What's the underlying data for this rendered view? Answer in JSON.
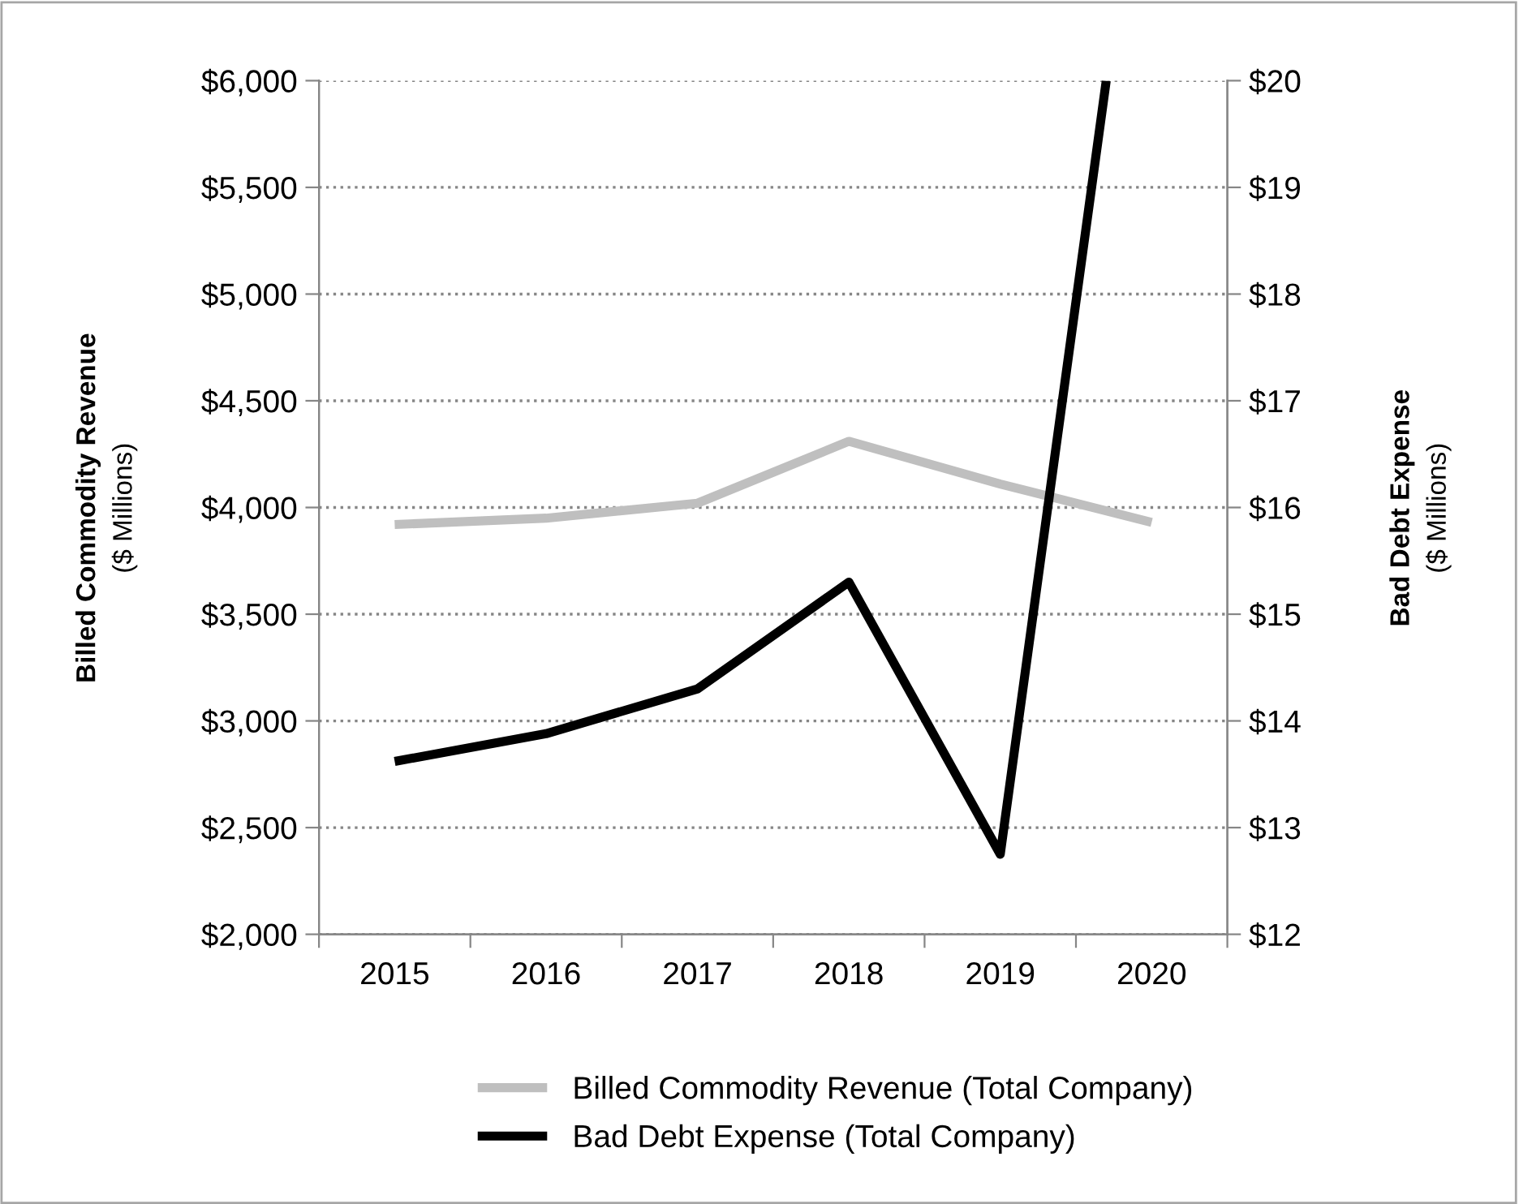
{
  "chart_data": {
    "type": "line",
    "x": [
      2015,
      2016,
      2017,
      2018,
      2019,
      2020
    ],
    "xlim": [
      2014.5,
      2020.5
    ],
    "xticks": [
      {
        "value": 2014.5,
        "label": null
      },
      {
        "value": 2015,
        "label": "2015"
      },
      {
        "value": 2015.5,
        "label": null
      },
      {
        "value": 2016,
        "label": "2016"
      },
      {
        "value": 2016.5,
        "label": null
      },
      {
        "value": 2017,
        "label": "2017"
      },
      {
        "value": 2017.5,
        "label": null
      },
      {
        "value": 2018,
        "label": "2018"
      },
      {
        "value": 2018.5,
        "label": null
      },
      {
        "value": 2019,
        "label": "2019"
      },
      {
        "value": 2019.5,
        "label": null
      },
      {
        "value": 2020,
        "label": "2020"
      },
      {
        "value": 2020.5,
        "label": null
      }
    ],
    "ylim": [
      2000,
      6000
    ],
    "yticks": [
      {
        "value": 2000,
        "label": "$2,000"
      },
      {
        "value": 2500,
        "label": "$2,500"
      },
      {
        "value": 3000,
        "label": "$3,000"
      },
      {
        "value": 3500,
        "label": "$3,500"
      },
      {
        "value": 4000,
        "label": "$4,000"
      },
      {
        "value": 4500,
        "label": "$4,500"
      },
      {
        "value": 5000,
        "label": "$5,000"
      },
      {
        "value": 5500,
        "label": "$5,500"
      },
      {
        "value": 6000,
        "label": "$6,000"
      }
    ],
    "y2lim": [
      12,
      20
    ],
    "y2ticks": [
      {
        "value": 12,
        "label": "$12"
      },
      {
        "value": 13,
        "label": "$13"
      },
      {
        "value": 14,
        "label": "$14"
      },
      {
        "value": 15,
        "label": "$15"
      },
      {
        "value": 16,
        "label": "$16"
      },
      {
        "value": 17,
        "label": "$17"
      },
      {
        "value": 18,
        "label": "$18"
      },
      {
        "value": 19,
        "label": "$19"
      },
      {
        "value": 20,
        "label": "$20"
      }
    ],
    "ylabel": "Billed Commodity Revenue\n($ Millions)",
    "y2label": "Bad Debt Expense\n($ Millions)",
    "grid": "y",
    "legend": "bottom",
    "marker": "none",
    "line_style": "solid",
    "series": [
      {
        "name": "Billed Commodity Revenue (Total Company)",
        "color": "#bfbfbf",
        "values": [
          3920,
          3950,
          4020,
          4310,
          4110,
          3930
        ]
      },
      {
        "name": "Bad Debt Expense (Total Company)",
        "color": "#000000",
        "axis": "y2",
        "x": [
          2015,
          2016,
          2017,
          2018,
          2019,
          2019.7
        ],
        "values": [
          13.62,
          13.88,
          14.3,
          15.3,
          12.75,
          20
        ]
      }
    ]
  }
}
